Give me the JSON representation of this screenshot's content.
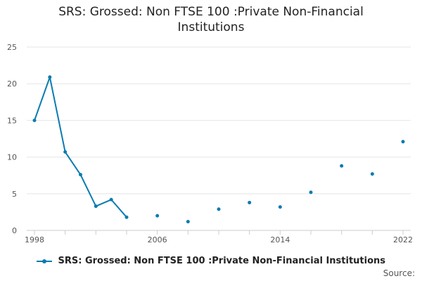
{
  "title_lines": [
    "SRS: Grossed: Non FTSE 100 :Private Non-Financial",
    "Institutions"
  ],
  "source_label": "Source:",
  "colors": {
    "series": "#0b7bb1",
    "grid": "#e6e6e6",
    "axis": "#cccccc"
  },
  "chart_data": {
    "type": "line",
    "title": "SRS: Grossed: Non FTSE 100 :Private Non-Financial Institutions",
    "xlabel": "",
    "ylabel": "",
    "xlim": [
      1998,
      2022
    ],
    "ylim": [
      0,
      25
    ],
    "x_ticks": [
      1998,
      2006,
      2014,
      2022
    ],
    "y_ticks": [
      0,
      5,
      10,
      15,
      20,
      25
    ],
    "grid": true,
    "legend": "bottom",
    "series": [
      {
        "name": "SRS: Grossed: Non FTSE 100 :Private Non-Financial Institutions",
        "points": [
          {
            "x": 1998,
            "y": 15.0
          },
          {
            "x": 1999,
            "y": 20.9
          },
          {
            "x": 2000,
            "y": 10.7
          },
          {
            "x": 2001,
            "y": 7.6
          },
          {
            "x": 2002,
            "y": 3.3
          },
          {
            "x": 2003,
            "y": 4.2
          },
          {
            "x": 2004,
            "y": 1.8
          },
          {
            "x": 2006,
            "y": 2.0
          },
          {
            "x": 2008,
            "y": 1.2
          },
          {
            "x": 2010,
            "y": 2.9
          },
          {
            "x": 2012,
            "y": 3.8
          },
          {
            "x": 2014,
            "y": 3.2
          },
          {
            "x": 2016,
            "y": 5.2
          },
          {
            "x": 2018,
            "y": 8.8
          },
          {
            "x": 2020,
            "y": 7.7
          },
          {
            "x": 2022,
            "y": 12.1
          }
        ]
      }
    ]
  }
}
